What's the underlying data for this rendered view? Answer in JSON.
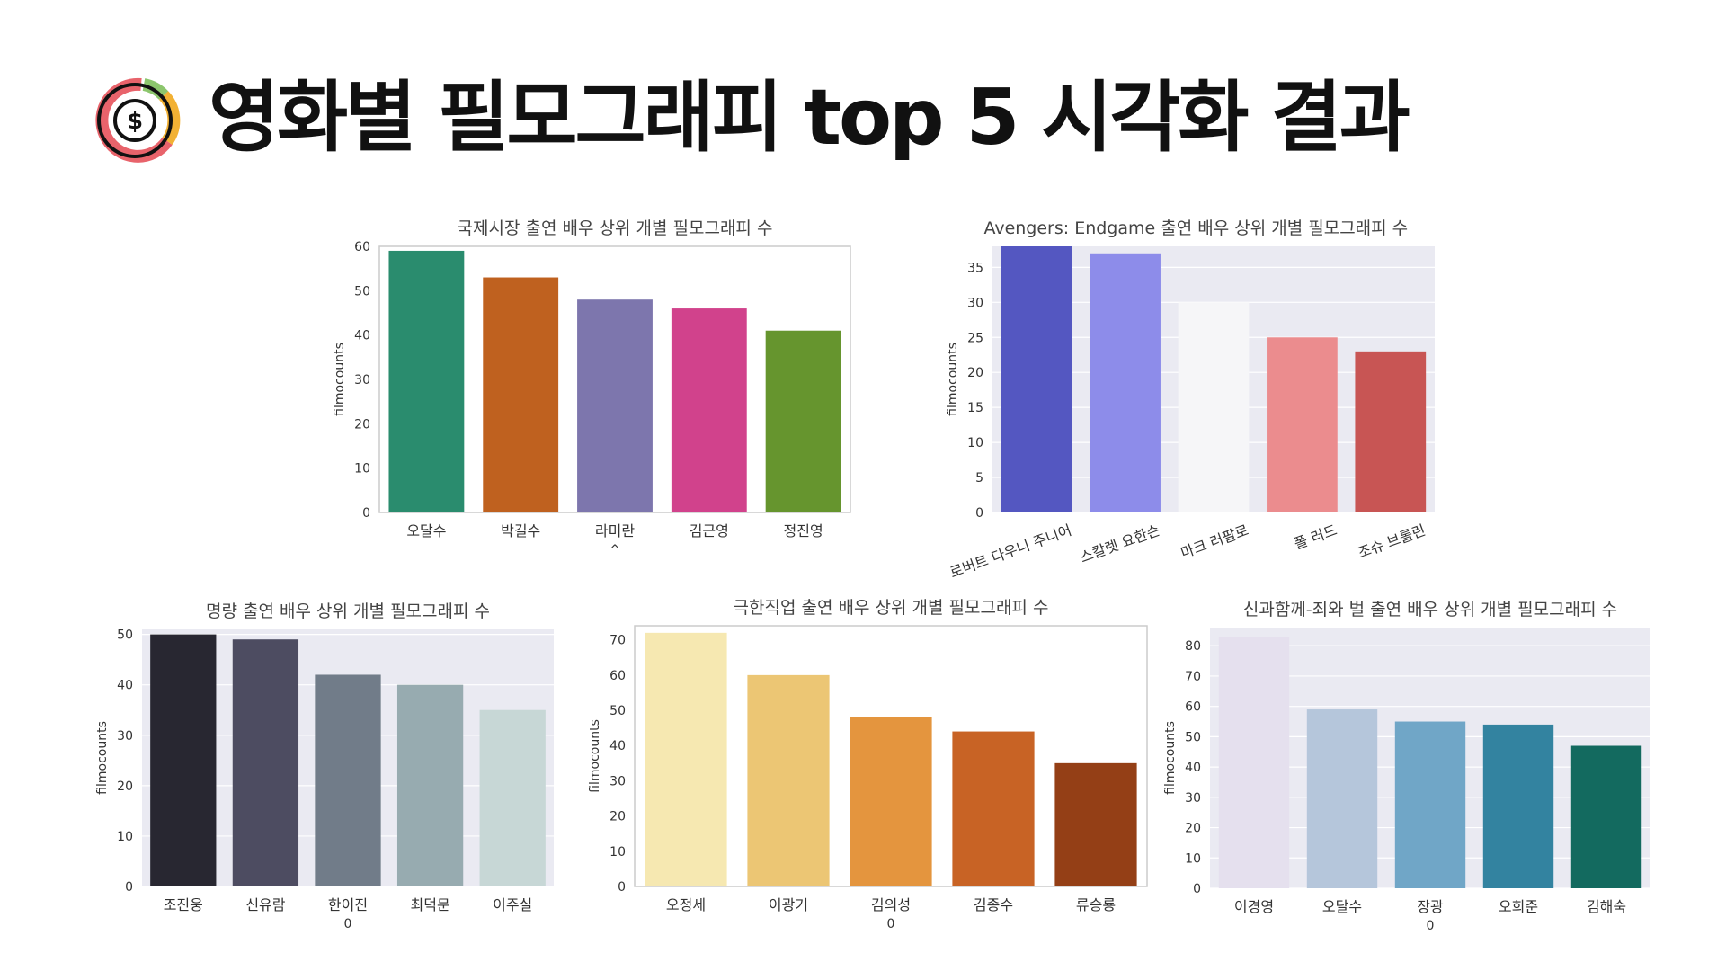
{
  "header": {
    "title": "영화별 필모그래피 top 5 시각화 결과",
    "icon": "pie-chart-dollar-icon",
    "icon_colors": [
      "#e8636b",
      "#f2b134",
      "#8cc66d",
      "#111111"
    ]
  },
  "chart_data": [
    {
      "type": "bar",
      "title": "국제시장 출연 배우 상위 개별 필모그래피 수",
      "xlabel": "",
      "ylabel": "filmocounts",
      "categories": [
        "오달수",
        "박길수",
        "라미란",
        "김근영",
        "정진영"
      ],
      "values": [
        59,
        53,
        48,
        46,
        41
      ],
      "colors": [
        "#2a8c6e",
        "#bf611f",
        "#7d76ad",
        "#d1428c",
        "#66952e"
      ],
      "ylim": [
        0,
        60
      ],
      "yticks": [
        0,
        10,
        20,
        30,
        40,
        50,
        60
      ],
      "grid": false,
      "background": "#ffffff",
      "tick_rotation": 0,
      "extra_labels": [
        {
          "after_category": 2,
          "text": "^"
        }
      ]
    },
    {
      "type": "bar",
      "title": "Avengers: Endgame 출연 배우 상위 개별 필모그래피 수",
      "xlabel": "",
      "ylabel": "filmocounts",
      "categories": [
        "로버트 다우니 주니어",
        "스칼렛 요한슨",
        "마크 러팔로",
        "폴 러드",
        "조슈 브롤린"
      ],
      "values": [
        38,
        37,
        30,
        25,
        23
      ],
      "colors": [
        "#5457c1",
        "#8d8cea",
        "#f6f6f8",
        "#eb8c8e",
        "#c85554"
      ],
      "ylim": [
        0,
        38
      ],
      "yticks": [
        0,
        5,
        10,
        15,
        20,
        25,
        30,
        35
      ],
      "grid": true,
      "background": "#eaeaf2",
      "tick_rotation": -20,
      "extra_labels": []
    },
    {
      "type": "bar",
      "title": "명량 출연 배우 상위 개별 필모그래피 수",
      "xlabel": "",
      "ylabel": "filmocounts",
      "categories": [
        "조진웅",
        "신유람",
        "한이진",
        "최덕문",
        "이주실"
      ],
      "values": [
        50,
        49,
        42,
        40,
        35
      ],
      "colors": [
        "#282731",
        "#4d4c61",
        "#717c89",
        "#97abb0",
        "#c7d7d6"
      ],
      "ylim": [
        0,
        51
      ],
      "yticks": [
        0,
        10,
        20,
        30,
        40,
        50
      ],
      "grid": true,
      "background": "#eaeaf2",
      "tick_rotation": 0,
      "extra_labels": [
        {
          "after_category": 2,
          "text": "0"
        }
      ]
    },
    {
      "type": "bar",
      "title": "극한직업 출연 배우 상위 개별 필모그래피 수",
      "xlabel": "",
      "ylabel": "filmocounts",
      "categories": [
        "오정세",
        "이광기",
        "김의성",
        "김종수",
        "류승룡"
      ],
      "values": [
        72,
        60,
        48,
        44,
        35
      ],
      "colors": [
        "#f6e8b1",
        "#ecc674",
        "#e4953e",
        "#c86325",
        "#943f16"
      ],
      "ylim": [
        0,
        74
      ],
      "yticks": [
        0,
        10,
        20,
        30,
        40,
        50,
        60,
        70
      ],
      "grid": false,
      "background": "#ffffff",
      "tick_rotation": 0,
      "extra_labels": [
        {
          "after_category": 2,
          "text": "0"
        }
      ]
    },
    {
      "type": "bar",
      "title": "신과함께-죄와 벌 출연 배우 상위 개별 필모그래피 수",
      "xlabel": "",
      "ylabel": "filmocounts",
      "categories": [
        "이경영",
        "오달수",
        "장광",
        "오희준",
        "김해숙"
      ],
      "values": [
        83,
        59,
        55,
        54,
        47
      ],
      "colors": [
        "#e5e0ee",
        "#b5c6db",
        "#70a6c7",
        "#3383a0",
        "#136a5f"
      ],
      "ylim": [
        0,
        86
      ],
      "yticks": [
        0,
        10,
        20,
        30,
        40,
        50,
        60,
        70,
        80
      ],
      "grid": true,
      "background": "#eaeaf2",
      "tick_rotation": 0,
      "extra_labels": [
        {
          "after_category": 2,
          "text": "0"
        }
      ]
    }
  ]
}
